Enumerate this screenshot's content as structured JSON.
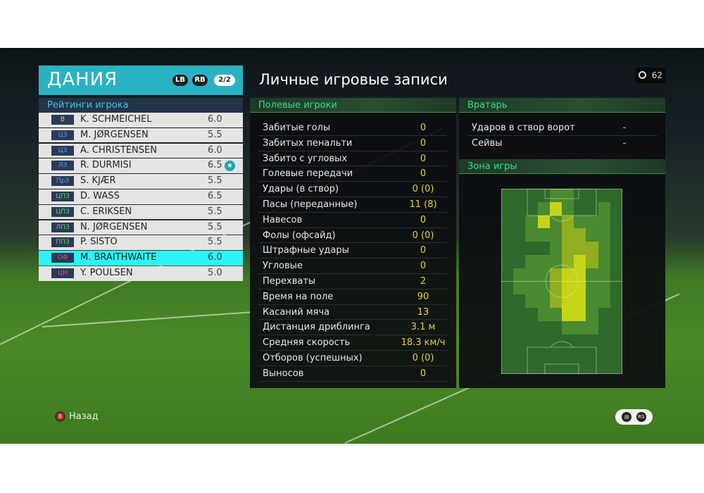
{
  "team": {
    "name": "ДАНИЯ",
    "lb": "LB",
    "rb": "RB",
    "page": "2/2"
  },
  "ratings": {
    "title": "Рейтинги игрока",
    "players": [
      {
        "pos": "В",
        "pos_color": "#e6d23a",
        "name": "K. SCHMEICHEL",
        "rating": "6.0"
      },
      {
        "pos": "ЦЗ",
        "pos_color": "#4aa8e8",
        "name": "M. JØRGENSEN",
        "rating": "5.5"
      },
      {
        "pos": "ЦЗ",
        "pos_color": "#4aa8e8",
        "name": "A. CHRISTENSEN",
        "rating": "6.0"
      },
      {
        "pos": "ЛЗ",
        "pos_color": "#4aa8e8",
        "name": "R. DURMISI",
        "rating": "6.5",
        "star": true
      },
      {
        "pos": "ПрЗ",
        "pos_color": "#4aa8e8",
        "name": "S. KJÆR",
        "rating": "5.5"
      },
      {
        "pos": "ЦПЗ",
        "pos_color": "#5ed84a",
        "name": "D. WASS",
        "rating": "6.5"
      },
      {
        "pos": "ЦПЗ",
        "pos_color": "#5ed84a",
        "name": "C. ERIKSEN",
        "rating": "5.5"
      },
      {
        "pos": "ЛПЗ",
        "pos_color": "#5ed84a",
        "name": "N. JØRGENSEN",
        "rating": "5.5"
      },
      {
        "pos": "ППЗ",
        "pos_color": "#5ed84a",
        "name": "P. SISTO",
        "rating": "5.5"
      },
      {
        "pos": "ОФ",
        "pos_color": "#e84a8a",
        "name": "M. BRAITHWAITE",
        "rating": "6.0",
        "selected": true
      },
      {
        "pos": "ЦН",
        "pos_color": "#e84a8a",
        "name": "Y. POULSEN",
        "rating": "5.0"
      }
    ]
  },
  "main": {
    "title": "Личные игровые записи",
    "timer": "62"
  },
  "field_players": {
    "title": "Полевые игроки",
    "stats": [
      {
        "label": "Забитые голы",
        "value": "0"
      },
      {
        "label": "Забитых пенальти",
        "value": "0"
      },
      {
        "label": "Забито с угловых",
        "value": "0"
      },
      {
        "label": "Голевые передачи",
        "value": "0"
      },
      {
        "label": "Удары (в створ)",
        "value": "0 (0)"
      },
      {
        "label": "Пасы (переданные)",
        "value": "11 (8)"
      },
      {
        "label": "Навесов",
        "value": "0"
      },
      {
        "label": "Фолы (офсайд)",
        "value": "0 (0)"
      },
      {
        "label": "Штрафные удары",
        "value": "0"
      },
      {
        "label": "Угловые",
        "value": "0"
      },
      {
        "label": "Перехваты",
        "value": "2"
      },
      {
        "label": "Время на поле",
        "value": "90"
      },
      {
        "label": "Касаний мяча",
        "value": "13"
      },
      {
        "label": "Дистанция дриблинга",
        "value": "3.1 м"
      },
      {
        "label": "Средняя скорость",
        "value": "18.3 км/ч"
      },
      {
        "label": "Отборов (успешных)",
        "value": "0 (0)"
      },
      {
        "label": "Выносов",
        "value": "0"
      }
    ]
  },
  "goalkeeper": {
    "title": "Вратарь",
    "stats": [
      {
        "label": "Ударов в створ ворот",
        "value": "-"
      },
      {
        "label": "Сейвы",
        "value": "-"
      }
    ]
  },
  "zone": {
    "title": "Зона игры",
    "heatmap_levels": [
      [
        0,
        0,
        0,
        0,
        1,
        1,
        0,
        0,
        0,
        0
      ],
      [
        0,
        0,
        0,
        1,
        3,
        1,
        0,
        0,
        1,
        0
      ],
      [
        0,
        0,
        1,
        3,
        1,
        2,
        1,
        1,
        1,
        0
      ],
      [
        0,
        0,
        1,
        1,
        1,
        2,
        2,
        1,
        1,
        0
      ],
      [
        0,
        0,
        0,
        0,
        1,
        2,
        2,
        2,
        1,
        0
      ],
      [
        0,
        0,
        1,
        1,
        1,
        2,
        3,
        2,
        1,
        0
      ],
      [
        0,
        1,
        1,
        1,
        2,
        3,
        3,
        1,
        1,
        0
      ],
      [
        0,
        1,
        1,
        1,
        2,
        3,
        3,
        1,
        1,
        0
      ],
      [
        0,
        0,
        1,
        1,
        2,
        3,
        3,
        1,
        1,
        0
      ],
      [
        0,
        0,
        0,
        1,
        1,
        3,
        3,
        1,
        0,
        0
      ],
      [
        0,
        0,
        0,
        0,
        0,
        1,
        1,
        1,
        0,
        0
      ],
      [
        0,
        0,
        0,
        0,
        0,
        0,
        0,
        0,
        0,
        0
      ],
      [
        0,
        0,
        0,
        0,
        0,
        0,
        0,
        0,
        0,
        0
      ],
      [
        0,
        0,
        0,
        0,
        0,
        0,
        0,
        0,
        0,
        0
      ]
    ],
    "level_colors": [
      "#2f6a2c",
      "#4a8a30",
      "#8fae22",
      "#c6d418"
    ]
  },
  "footer": {
    "back_label": "Назад",
    "back_button": "B"
  }
}
